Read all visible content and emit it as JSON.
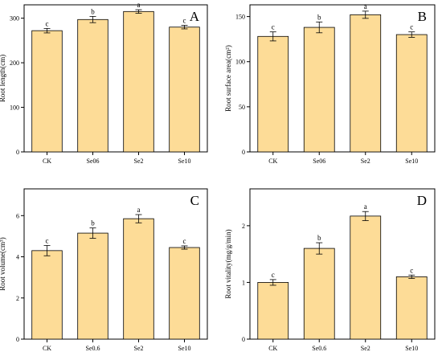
{
  "chart_data": [
    {
      "type": "bar",
      "panel_label": "A",
      "ylabel": "Root length(cm)",
      "categories": [
        "CK",
        "Se06",
        "Se2",
        "Se10"
      ],
      "values": [
        272,
        297,
        315,
        280
      ],
      "errors": [
        5,
        7,
        4,
        4
      ],
      "significance": [
        "c",
        "b",
        "a",
        "c"
      ],
      "ylim": [
        0,
        330
      ],
      "yticks": [
        0,
        100,
        200,
        300
      ],
      "bar_color": "#fddc97",
      "grid": false
    },
    {
      "type": "bar",
      "panel_label": "B",
      "ylabel": "Root surface area(cm²)",
      "categories": [
        "CK",
        "Se06",
        "Se2",
        "Se10"
      ],
      "values": [
        128,
        138,
        152,
        130
      ],
      "errors": [
        5,
        6,
        4,
        3
      ],
      "significance": [
        "c",
        "b",
        "a",
        "c"
      ],
      "ylim": [
        0,
        163
      ],
      "yticks": [
        0,
        50,
        100,
        150
      ],
      "bar_color": "#fddc97",
      "grid": false
    },
    {
      "type": "bar",
      "panel_label": "C",
      "ylabel": "Root volume(cm³)",
      "categories": [
        "CK",
        "Se0.6",
        "Se2",
        "Se10"
      ],
      "values": [
        4.3,
        5.15,
        5.85,
        4.45
      ],
      "errors": [
        0.25,
        0.25,
        0.2,
        0.08
      ],
      "significance": [
        "c",
        "b",
        "a",
        "c"
      ],
      "ylim": [
        0,
        7.3
      ],
      "yticks": [
        0,
        2,
        4,
        6
      ],
      "bar_color": "#fddc97",
      "grid": false
    },
    {
      "type": "bar",
      "panel_label": "D",
      "ylabel": "Root vitality(mg/g/min)",
      "categories": [
        "CK",
        "Se0.6",
        "Se2",
        "Se10"
      ],
      "values": [
        1.0,
        1.6,
        2.17,
        1.1
      ],
      "errors": [
        0.05,
        0.1,
        0.08,
        0.03
      ],
      "significance": [
        "c",
        "b",
        "a",
        "c"
      ],
      "ylim": [
        0,
        2.65
      ],
      "yticks": [
        0,
        1,
        2
      ],
      "bar_color": "#fddc97",
      "grid": false
    }
  ]
}
